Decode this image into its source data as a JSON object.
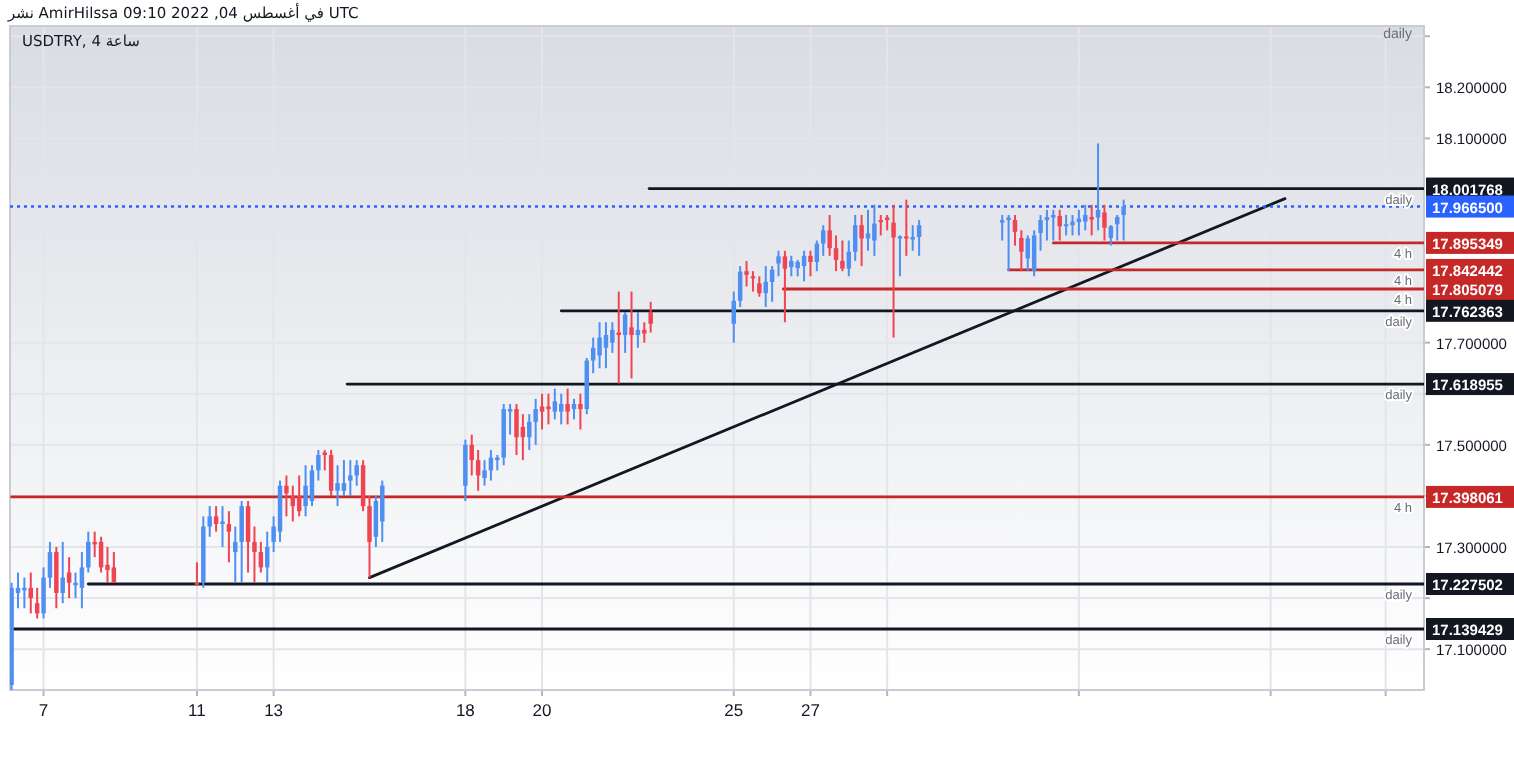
{
  "chart_data": {
    "type": "candlestick",
    "title": "نشر AmirHilssa في أغسطس 04, 2022 09:10 UTC",
    "subtitle": "USDTRY, 4 ساعة",
    "x": [
      "2022-07-06T04:00",
      "2022-07-06T08:00",
      "2022-07-06T12:00",
      "2022-07-06T16:00",
      "2022-07-06T20:00",
      "2022-07-07T00:00",
      "2022-07-07T04:00",
      "2022-07-07T08:00",
      "2022-07-07T12:00",
      "2022-07-07T16:00",
      "2022-07-07T20:00",
      "2022-07-08T00:00",
      "2022-07-08T04:00",
      "2022-07-08T08:00",
      "2022-07-08T12:00",
      "2022-07-08T16:00",
      "2022-07-08T20:00",
      "2022-07-11T00:00",
      "2022-07-11T04:00",
      "2022-07-11T08:00",
      "2022-07-11T12:00",
      "2022-07-11T16:00",
      "2022-07-11T20:00",
      "2022-07-12T00:00",
      "2022-07-12T04:00",
      "2022-07-12T08:00",
      "2022-07-12T12:00",
      "2022-07-12T16:00",
      "2022-07-12T20:00",
      "2022-07-13T00:00",
      "2022-07-13T04:00",
      "2022-07-13T08:00",
      "2022-07-13T12:00",
      "2022-07-13T16:00",
      "2022-07-13T20:00",
      "2022-07-14T00:00",
      "2022-07-14T04:00",
      "2022-07-14T08:00",
      "2022-07-14T12:00",
      "2022-07-14T16:00",
      "2022-07-14T20:00",
      "2022-07-15T00:00",
      "2022-07-15T04:00",
      "2022-07-15T08:00",
      "2022-07-15T12:00",
      "2022-07-15T16:00",
      "2022-07-15T20:00",
      "2022-07-18T00:00",
      "2022-07-18T04:00",
      "2022-07-18T08:00",
      "2022-07-18T12:00",
      "2022-07-18T16:00",
      "2022-07-18T20:00",
      "2022-07-19T00:00",
      "2022-07-19T04:00",
      "2022-07-19T08:00",
      "2022-07-19T12:00",
      "2022-07-19T16:00",
      "2022-07-19T20:00",
      "2022-07-20T00:00",
      "2022-07-20T04:00",
      "2022-07-20T08:00",
      "2022-07-20T12:00",
      "2022-07-20T16:00",
      "2022-07-20T20:00",
      "2022-07-21T00:00",
      "2022-07-21T04:00",
      "2022-07-21T08:00",
      "2022-07-21T12:00",
      "2022-07-21T16:00",
      "2022-07-21T20:00",
      "2022-07-22T00:00",
      "2022-07-22T04:00",
      "2022-07-22T08:00",
      "2022-07-22T12:00",
      "2022-07-22T16:00",
      "2022-07-22T20:00",
      "2022-07-25T00:00",
      "2022-07-25T04:00",
      "2022-07-25T08:00",
      "2022-07-25T12:00",
      "2022-07-25T16:00",
      "2022-07-25T20:00",
      "2022-07-26T00:00",
      "2022-07-26T04:00",
      "2022-07-26T08:00",
      "2022-07-26T12:00",
      "2022-07-26T16:00",
      "2022-07-26T20:00",
      "2022-07-27T00:00",
      "2022-07-27T04:00",
      "2022-07-27T08:00",
      "2022-07-27T12:00",
      "2022-07-27T16:00",
      "2022-07-27T20:00",
      "2022-07-28T00:00",
      "2022-07-28T04:00",
      "2022-07-28T08:00",
      "2022-07-28T12:00",
      "2022-07-28T16:00",
      "2022-07-28T20:00",
      "2022-07-29T00:00",
      "2022-07-29T04:00",
      "2022-07-29T08:00",
      "2022-07-29T12:00",
      "2022-07-29T16:00",
      "2022-07-29T20:00",
      "2022-08-01T00:00",
      "2022-08-01T04:00",
      "2022-08-01T08:00",
      "2022-08-01T12:00",
      "2022-08-01T16:00",
      "2022-08-01T20:00",
      "2022-08-02T00:00",
      "2022-08-02T04:00",
      "2022-08-02T08:00",
      "2022-08-02T12:00",
      "2022-08-02T16:00",
      "2022-08-02T20:00",
      "2022-08-03T00:00",
      "2022-08-03T04:00",
      "2022-08-03T08:00",
      "2022-08-03T12:00",
      "2022-08-03T16:00",
      "2022-08-03T20:00",
      "2022-08-04T00:00",
      "2022-08-04T04:00"
    ],
    "ohlc": [
      [
        17.03,
        17.23,
        17.02,
        17.22
      ],
      [
        17.21,
        17.25,
        17.18,
        17.22
      ],
      [
        17.215,
        17.24,
        17.18,
        17.22
      ],
      [
        17.22,
        17.25,
        17.17,
        17.2
      ],
      [
        17.19,
        17.22,
        17.16,
        17.17
      ],
      [
        17.17,
        17.26,
        17.16,
        17.24
      ],
      [
        17.24,
        17.31,
        17.22,
        17.29
      ],
      [
        17.29,
        17.3,
        17.18,
        17.21
      ],
      [
        17.21,
        17.31,
        17.19,
        17.24
      ],
      [
        17.25,
        17.28,
        17.2,
        17.23
      ],
      [
        17.225,
        17.25,
        17.2,
        17.23
      ],
      [
        17.22,
        17.29,
        17.18,
        17.26
      ],
      [
        17.26,
        17.33,
        17.25,
        17.31
      ],
      [
        17.31,
        17.33,
        17.28,
        17.305
      ],
      [
        17.31,
        17.32,
        17.25,
        17.26
      ],
      [
        17.265,
        17.3,
        17.23,
        17.255
      ],
      [
        17.26,
        17.29,
        17.23,
        17.23
      ],
      [
        17.23,
        17.27,
        17.225,
        17.228
      ],
      [
        17.23,
        17.36,
        17.22,
        17.34
      ],
      [
        17.34,
        17.38,
        17.32,
        17.36
      ],
      [
        17.36,
        17.38,
        17.33,
        17.345
      ],
      [
        17.345,
        17.38,
        17.3,
        17.35
      ],
      [
        17.345,
        17.37,
        17.27,
        17.33
      ],
      [
        17.29,
        17.34,
        17.23,
        17.31
      ],
      [
        17.31,
        17.39,
        17.23,
        17.38
      ],
      [
        17.38,
        17.39,
        17.25,
        17.31
      ],
      [
        17.31,
        17.34,
        17.23,
        17.29
      ],
      [
        17.29,
        17.31,
        17.25,
        17.26
      ],
      [
        17.26,
        17.33,
        17.23,
        17.3
      ],
      [
        17.31,
        17.36,
        17.29,
        17.34
      ],
      [
        17.33,
        17.43,
        17.31,
        17.42
      ],
      [
        17.42,
        17.44,
        17.36,
        17.405
      ],
      [
        17.4,
        17.42,
        17.35,
        17.38
      ],
      [
        17.4,
        17.44,
        17.36,
        17.37
      ],
      [
        17.38,
        17.46,
        17.36,
        17.42
      ],
      [
        17.39,
        17.46,
        17.38,
        17.45
      ],
      [
        17.45,
        17.49,
        17.43,
        17.48
      ],
      [
        17.485,
        17.49,
        17.45,
        17.48
      ],
      [
        17.48,
        17.49,
        17.4,
        17.41
      ],
      [
        17.41,
        17.46,
        17.38,
        17.425
      ],
      [
        17.41,
        17.47,
        17.4,
        17.425
      ],
      [
        17.43,
        17.47,
        17.4,
        17.44
      ],
      [
        17.44,
        17.47,
        17.42,
        17.46
      ],
      [
        17.46,
        17.47,
        17.37,
        17.38
      ],
      [
        17.38,
        17.4,
        17.24,
        17.31
      ],
      [
        17.32,
        17.4,
        17.3,
        17.39
      ],
      [
        17.35,
        17.43,
        17.31,
        17.42
      ],
      [
        17.42,
        17.51,
        17.39,
        17.5
      ],
      [
        17.5,
        17.52,
        17.44,
        17.47
      ],
      [
        17.47,
        17.49,
        17.41,
        17.44
      ],
      [
        17.435,
        17.47,
        17.42,
        17.45
      ],
      [
        17.45,
        17.49,
        17.43,
        17.475
      ],
      [
        17.47,
        17.48,
        17.45,
        17.475
      ],
      [
        17.475,
        17.58,
        17.46,
        17.57
      ],
      [
        17.565,
        17.58,
        17.52,
        17.57
      ],
      [
        17.57,
        17.58,
        17.48,
        17.515
      ],
      [
        17.535,
        17.56,
        17.47,
        17.515
      ],
      [
        17.515,
        17.56,
        17.49,
        17.545
      ],
      [
        17.545,
        17.59,
        17.5,
        17.57
      ],
      [
        17.575,
        17.6,
        17.53,
        17.565
      ],
      [
        17.575,
        17.6,
        17.54,
        17.57
      ],
      [
        17.565,
        17.61,
        17.55,
        17.585
      ],
      [
        17.565,
        17.6,
        17.54,
        17.58
      ],
      [
        17.58,
        17.61,
        17.54,
        17.565
      ],
      [
        17.57,
        17.59,
        17.55,
        17.58
      ],
      [
        17.58,
        17.6,
        17.53,
        17.57
      ],
      [
        17.57,
        17.67,
        17.56,
        17.665
      ],
      [
        17.665,
        17.71,
        17.64,
        17.69
      ],
      [
        17.675,
        17.74,
        17.65,
        17.71
      ],
      [
        17.69,
        17.74,
        17.65,
        17.715
      ],
      [
        17.7,
        17.74,
        17.68,
        17.725
      ],
      [
        17.72,
        17.8,
        17.62,
        17.715
      ],
      [
        17.715,
        17.76,
        17.68,
        17.755
      ],
      [
        17.73,
        17.8,
        17.63,
        17.715
      ],
      [
        17.715,
        17.76,
        17.69,
        17.725
      ],
      [
        17.725,
        17.74,
        17.7,
        17.718
      ],
      [
        17.76,
        17.78,
        17.72,
        17.737
      ],
      [
        17.737,
        17.8,
        17.7,
        17.782
      ],
      [
        17.782,
        17.85,
        17.77,
        17.839
      ],
      [
        17.84,
        17.86,
        17.81,
        17.833
      ],
      [
        17.83,
        17.84,
        17.8,
        17.826
      ],
      [
        17.816,
        17.83,
        17.79,
        17.797
      ],
      [
        17.797,
        17.85,
        17.77,
        17.819
      ],
      [
        17.819,
        17.85,
        17.78,
        17.843
      ],
      [
        17.855,
        17.88,
        17.83,
        17.869
      ],
      [
        17.869,
        17.88,
        17.74,
        17.845
      ],
      [
        17.848,
        17.87,
        17.83,
        17.86
      ],
      [
        17.846,
        17.862,
        17.83,
        17.858
      ],
      [
        17.85,
        17.88,
        17.82,
        17.87
      ],
      [
        17.87,
        17.88,
        17.83,
        17.858
      ],
      [
        17.858,
        17.9,
        17.84,
        17.894
      ],
      [
        17.894,
        17.93,
        17.87,
        17.92
      ],
      [
        17.92,
        17.95,
        17.87,
        17.885
      ],
      [
        17.885,
        17.91,
        17.84,
        17.862
      ],
      [
        17.86,
        17.9,
        17.84,
        17.845
      ],
      [
        17.845,
        17.9,
        17.83,
        17.878
      ],
      [
        17.878,
        17.95,
        17.86,
        17.93
      ],
      [
        17.93,
        17.95,
        17.85,
        17.904
      ],
      [
        17.904,
        17.96,
        17.88,
        17.914
      ],
      [
        17.9,
        17.97,
        17.87,
        17.933
      ],
      [
        17.94,
        17.95,
        17.91,
        17.937
      ],
      [
        17.945,
        17.95,
        17.92,
        17.94
      ],
      [
        17.935,
        17.97,
        17.71,
        17.906
      ],
      [
        17.905,
        17.91,
        17.83,
        17.908
      ],
      [
        17.908,
        17.98,
        17.87,
        17.904
      ],
      [
        17.902,
        17.93,
        17.88,
        17.907
      ],
      [
        17.907,
        17.94,
        17.87,
        17.93
      ],
      [
        17.935,
        17.95,
        17.9,
        17.94
      ],
      [
        17.94,
        17.95,
        17.84,
        17.945
      ],
      [
        17.94,
        17.95,
        17.89,
        17.917
      ],
      [
        17.905,
        17.92,
        17.84,
        17.878
      ],
      [
        17.865,
        17.91,
        17.84,
        17.904
      ],
      [
        17.84,
        17.92,
        17.83,
        17.91
      ],
      [
        17.915,
        17.95,
        17.88,
        17.94
      ],
      [
        17.94,
        17.96,
        17.9,
        17.946
      ],
      [
        17.945,
        17.96,
        17.9,
        17.95
      ],
      [
        17.948,
        17.96,
        17.9,
        17.928
      ],
      [
        17.928,
        17.95,
        17.91,
        17.932
      ],
      [
        17.93,
        17.95,
        17.91,
        17.937
      ],
      [
        17.936,
        17.96,
        17.91,
        17.943
      ],
      [
        17.937,
        17.97,
        17.92,
        17.95
      ],
      [
        17.946,
        17.97,
        17.91,
        17.941
      ],
      [
        17.945,
        18.09,
        17.92,
        17.96
      ],
      [
        17.955,
        17.97,
        17.9,
        17.925
      ],
      [
        17.905,
        17.93,
        17.89,
        17.928
      ],
      [
        17.932,
        17.95,
        17.9,
        17.946
      ],
      [
        17.95,
        17.98,
        17.9,
        17.9665
      ]
    ],
    "colors": [
      "#4f8ff2",
      "#4f8ff2",
      "#4f8ff2",
      "#ef4452",
      "#ef4452",
      "#4f8ff2",
      "#4f8ff2",
      "#ef4452",
      "#4f8ff2",
      "#ef4452",
      "#4f8ff2",
      "#4f8ff2",
      "#4f8ff2",
      "#ef4452",
      "#ef4452",
      "#ef4452",
      "#ef4452",
      "#ef4452",
      "#4f8ff2",
      "#4f8ff2",
      "#ef4452",
      "#4f8ff2",
      "#ef4452",
      "#4f8ff2",
      "#4f8ff2",
      "#ef4452",
      "#ef4452",
      "#ef4452",
      "#4f8ff2",
      "#4f8ff2",
      "#4f8ff2",
      "#ef4452",
      "#ef4452",
      "#ef4452",
      "#4f8ff2",
      "#4f8ff2",
      "#4f8ff2",
      "#ef4452",
      "#ef4452",
      "#4f8ff2",
      "#4f8ff2",
      "#4f8ff2",
      "#4f8ff2",
      "#ef4452",
      "#ef4452",
      "#4f8ff2",
      "#4f8ff2",
      "#4f8ff2",
      "#ef4452",
      "#ef4452",
      "#4f8ff2",
      "#4f8ff2",
      "#4f8ff2",
      "#4f8ff2",
      "#4f8ff2",
      "#ef4452",
      "#ef4452",
      "#4f8ff2",
      "#4f8ff2",
      "#ef4452",
      "#ef4452",
      "#4f8ff2",
      "#4f8ff2",
      "#ef4452",
      "#4f8ff2",
      "#ef4452",
      "#4f8ff2",
      "#4f8ff2",
      "#4f8ff2",
      "#4f8ff2",
      "#4f8ff2",
      "#ef4452",
      "#4f8ff2",
      "#ef4452",
      "#4f8ff2",
      "#ef4452",
      "#ef4452",
      "#4f8ff2",
      "#4f8ff2",
      "#ef4452",
      "#ef4452",
      "#ef4452",
      "#4f8ff2",
      "#4f8ff2",
      "#4f8ff2",
      "#ef4452",
      "#4f8ff2",
      "#4f8ff2",
      "#4f8ff2",
      "#ef4452",
      "#4f8ff2",
      "#4f8ff2",
      "#ef4452",
      "#ef4452",
      "#ef4452",
      "#4f8ff2",
      "#4f8ff2",
      "#ef4452",
      "#4f8ff2",
      "#4f8ff2",
      "#ef4452",
      "#ef4452",
      "#ef4452",
      "#4f8ff2",
      "#ef4452",
      "#4f8ff2",
      "#4f8ff2",
      "#4f8ff2",
      "#4f8ff2",
      "#ef4452",
      "#ef4452",
      "#4f8ff2",
      "#4f8ff2",
      "#4f8ff2",
      "#4f8ff2",
      "#4f8ff2",
      "#ef4452",
      "#4f8ff2",
      "#4f8ff2",
      "#4f8ff2",
      "#4f8ff2",
      "#ef4452",
      "#4f8ff2",
      "#ef4452",
      "#4f8ff2",
      "#4f8ff2",
      "#4f8ff2"
    ],
    "series": [
      {
        "type": "line",
        "x": [
          "2022-07-15T12:00",
          "2022-08-08T09:00"
        ],
        "values": [
          17.24,
          17.982
        ],
        "color": "#131722"
      },
      {
        "type": "line",
        "x": [
          "2022-07-22T19:00",
          "2022-08-12T00:00"
        ],
        "values": [
          18.001768,
          18.001768
        ],
        "color": "#131722",
        "value_labels": [
          null,
          "18.001768"
        ]
      },
      {
        "type": "line",
        "x": [
          "2022-08-02T08:00",
          "2022-08-12T00:00"
        ],
        "values": [
          17.895349,
          17.895349
        ],
        "color": "#c62828",
        "value_labels": [
          null,
          "17.895349"
        ]
      },
      {
        "type": "line",
        "x": [
          "2022-08-01T04:00",
          "2022-08-12T00:00"
        ],
        "values": [
          17.842442,
          17.842442
        ],
        "color": "#c62828",
        "value_labels": [
          null,
          "17.842442"
        ]
      },
      {
        "type": "line",
        "x": [
          "2022-07-26T07:00",
          "2022-08-12T00:00"
        ],
        "values": [
          17.805079,
          17.805079
        ],
        "color": "#c62828",
        "value_labels": [
          null,
          "17.805079"
        ]
      },
      {
        "type": "line",
        "x": [
          "2022-07-20T12:00",
          "2022-08-12T00:00"
        ],
        "values": [
          17.762363,
          17.762363
        ],
        "color": "#131722",
        "value_labels": [
          null,
          "17.762363"
        ]
      },
      {
        "type": "line",
        "x": [
          "2022-07-14T22:00",
          "2022-08-12T00:00"
        ],
        "values": [
          17.618955,
          17.618955
        ],
        "color": "#131722",
        "value_labels": [
          null,
          "17.618955"
        ]
      },
      {
        "type": "line",
        "x": [
          "2022-07-06T04:00",
          "2022-08-12T00:00"
        ],
        "values": [
          17.398061,
          17.398061
        ],
        "color": "#c62828",
        "value_labels": [
          null,
          "17.398061"
        ]
      },
      {
        "type": "line",
        "x": [
          "2022-07-08T04:00",
          "2022-08-12T00:00"
        ],
        "values": [
          17.227502,
          17.227502
        ],
        "color": "#131722",
        "value_labels": [
          null,
          "17.227502"
        ]
      },
      {
        "type": "line",
        "x": [
          "2022-07-06T04:00",
          "2022-08-12T00:00"
        ],
        "values": [
          17.139429,
          17.139429
        ],
        "color": "#131722",
        "value_labels": [
          null,
          "17.139429"
        ]
      }
    ],
    "ref_lines": [
      {
        "axis": "y",
        "value": 17.9665,
        "label": "17.966500",
        "color": "#2962ff",
        "line_style": "dotted"
      }
    ],
    "annotations": [
      "daily",
      {
        "text": "daily",
        "x": "2022-08-12T00:00",
        "y": 18.001768
      },
      {
        "text": "4 h",
        "x": "2022-08-12T00:00",
        "y": 17.895349
      },
      {
        "text": "4 h",
        "x": "2022-08-12T00:00",
        "y": 17.842442
      },
      {
        "text": "4 h",
        "x": "2022-08-12T00:00",
        "y": 17.805079
      },
      {
        "text": "daily",
        "x": "2022-08-12T00:00",
        "y": 17.762363
      },
      {
        "text": "daily",
        "x": "2022-08-12T00:00",
        "y": 17.618955
      },
      {
        "text": "4 h",
        "x": "2022-08-12T00:00",
        "y": 17.398061
      },
      {
        "text": "daily",
        "x": "2022-08-12T00:00",
        "y": 17.227502
      },
      {
        "text": "daily",
        "x": "2022-08-12T00:00",
        "y": 17.139429
      }
    ],
    "xlim": [
      "2022-07-06T03:00",
      "2022-08-12T00:00"
    ],
    "ylim": [
      17.02,
      18.32
    ],
    "xticks": [
      {
        "value": "2022-07-07",
        "label": "7"
      },
      {
        "value": "2022-07-11",
        "label": "11"
      },
      {
        "value": "2022-07-13",
        "label": "13"
      },
      {
        "value": "2022-07-18",
        "label": "18"
      },
      {
        "value": "2022-07-20",
        "label": "20"
      },
      {
        "value": "2022-07-25",
        "label": "25"
      },
      {
        "value": "2022-07-27",
        "label": "27"
      },
      {
        "value": "2022-07-29",
        "label": null
      },
      {
        "value": "2022-08-03",
        "label": null
      },
      {
        "value": "2022-08-08",
        "label": null
      },
      {
        "value": "2022-08-11",
        "label": null
      }
    ],
    "yticks": [
      {
        "value": 17.1,
        "label": "17.100000"
      },
      {
        "value": 17.2,
        "label": null
      },
      {
        "value": 17.3,
        "label": "17.300000"
      },
      {
        "value": 17.4,
        "label": null
      },
      {
        "value": 17.5,
        "label": "17.500000"
      },
      {
        "value": 17.6,
        "label": null
      },
      {
        "value": 17.7,
        "label": "17.700000"
      },
      {
        "value": 18.1,
        "label": "18.100000"
      },
      {
        "value": 18.2,
        "label": "18.200000"
      },
      {
        "value": 18.3,
        "label": null
      }
    ],
    "grid": true
  }
}
